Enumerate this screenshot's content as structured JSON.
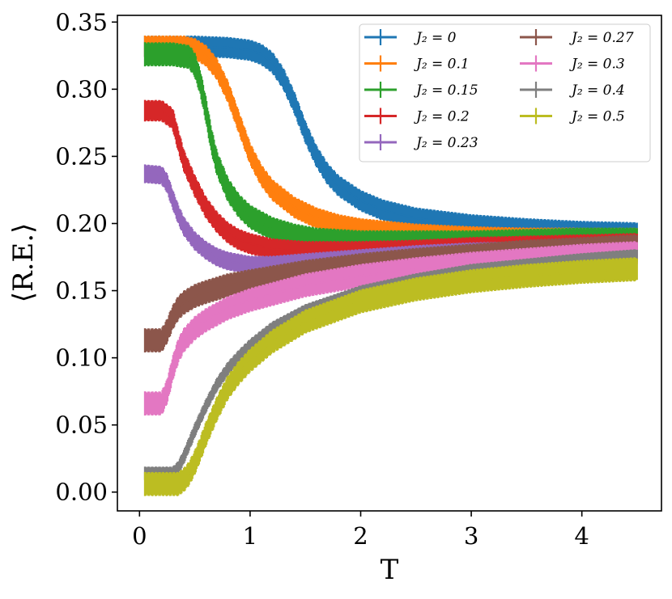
{
  "chart_data": {
    "type": "line",
    "title": "",
    "xlabel": "T",
    "ylabel": "⟨R.E.⟩",
    "xlim": [
      -0.2,
      4.72
    ],
    "ylim": [
      -0.014,
      0.355
    ],
    "xticks": [
      0,
      1,
      2,
      3,
      4
    ],
    "xtick_labels": [
      "0",
      "1",
      "2",
      "3",
      "4"
    ],
    "yticks": [
      0.0,
      0.05,
      0.1,
      0.15,
      0.2,
      0.25,
      0.3,
      0.35
    ],
    "ytick_labels": [
      "0.00",
      "0.05",
      "0.10",
      "0.15",
      "0.20",
      "0.25",
      "0.30",
      "0.35"
    ],
    "legend_position": "top-right",
    "legend_columns": 2,
    "grid": false,
    "series": [
      {
        "name": "J2 = 0",
        "label": "J₂ = 0",
        "color": "#1f77b4",
        "errorbar": 0.008,
        "x": [
          0.05,
          0.5,
          0.8,
          1.0,
          1.1,
          1.2,
          1.3,
          1.4,
          1.5,
          1.6,
          1.7,
          1.8,
          2.0,
          2.2,
          2.5,
          3.0,
          3.5,
          4.0,
          4.5
        ],
        "y": [
          0.332,
          0.332,
          0.331,
          0.329,
          0.326,
          0.32,
          0.308,
          0.29,
          0.268,
          0.25,
          0.237,
          0.228,
          0.217,
          0.21,
          0.204,
          0.199,
          0.196,
          0.194,
          0.193
        ]
      },
      {
        "name": "J2 = 0.1",
        "label": "J₂ = 0.1",
        "color": "#ff7f0e",
        "errorbar": 0.008,
        "x": [
          0.05,
          0.4,
          0.5,
          0.6,
          0.7,
          0.8,
          0.9,
          1.0,
          1.1,
          1.2,
          1.4,
          1.6,
          1.8,
          2.0,
          2.5,
          3.0,
          3.5,
          4.0,
          4.5
        ],
        "y": [
          0.332,
          0.332,
          0.33,
          0.325,
          0.315,
          0.298,
          0.275,
          0.252,
          0.236,
          0.225,
          0.212,
          0.204,
          0.199,
          0.196,
          0.192,
          0.19,
          0.189,
          0.189,
          0.189
        ]
      },
      {
        "name": "J2 = 0.15",
        "label": "J₂ = 0.15",
        "color": "#2ca02c",
        "errorbar": 0.009,
        "x": [
          0.05,
          0.3,
          0.45,
          0.5,
          0.55,
          0.6,
          0.65,
          0.7,
          0.8,
          0.9,
          1.0,
          1.2,
          1.4,
          1.6,
          2.0,
          2.5,
          3.0,
          3.5,
          4.0,
          4.5
        ],
        "y": [
          0.326,
          0.326,
          0.324,
          0.318,
          0.305,
          0.285,
          0.262,
          0.245,
          0.225,
          0.213,
          0.205,
          0.196,
          0.191,
          0.188,
          0.186,
          0.186,
          0.186,
          0.187,
          0.188,
          0.188
        ]
      },
      {
        "name": "J2 = 0.2",
        "label": "J₂ = 0.2",
        "color": "#d62728",
        "errorbar": 0.008,
        "x": [
          0.05,
          0.2,
          0.3,
          0.35,
          0.4,
          0.5,
          0.6,
          0.7,
          0.8,
          0.9,
          1.0,
          1.2,
          1.5,
          2.0,
          2.5,
          3.0,
          3.5,
          4.0,
          4.5
        ],
        "y": [
          0.284,
          0.284,
          0.278,
          0.262,
          0.247,
          0.228,
          0.212,
          0.201,
          0.193,
          0.188,
          0.185,
          0.181,
          0.179,
          0.179,
          0.18,
          0.182,
          0.183,
          0.184,
          0.185
        ]
      },
      {
        "name": "J2 = 0.23",
        "label": "J₂ = 0.23",
        "color": "#9467bd",
        "errorbar": 0.007,
        "x": [
          0.05,
          0.2,
          0.25,
          0.3,
          0.35,
          0.4,
          0.5,
          0.6,
          0.7,
          0.8,
          1.0,
          1.2,
          1.5,
          2.0,
          2.5,
          3.0,
          3.5,
          4.0,
          4.5
        ],
        "y": [
          0.237,
          0.236,
          0.23,
          0.218,
          0.207,
          0.198,
          0.187,
          0.18,
          0.175,
          0.172,
          0.169,
          0.169,
          0.171,
          0.174,
          0.177,
          0.179,
          0.18,
          0.181,
          0.182
        ]
      },
      {
        "name": "J2 = 0.27",
        "label": "J₂ = 0.27",
        "color": "#8c564b",
        "errorbar": 0.009,
        "x": [
          0.05,
          0.2,
          0.25,
          0.3,
          0.35,
          0.4,
          0.5,
          0.6,
          0.8,
          1.0,
          1.5,
          2.0,
          2.5,
          3.0,
          3.5,
          4.0,
          4.5
        ],
        "y": [
          0.113,
          0.113,
          0.12,
          0.13,
          0.137,
          0.141,
          0.146,
          0.149,
          0.154,
          0.157,
          0.164,
          0.169,
          0.173,
          0.176,
          0.179,
          0.181,
          0.183
        ]
      },
      {
        "name": "J2 = 0.3",
        "label": "J₂ = 0.3",
        "color": "#e377c2",
        "errorbar": 0.009,
        "x": [
          0.05,
          0.2,
          0.25,
          0.3,
          0.35,
          0.4,
          0.5,
          0.6,
          0.8,
          1.0,
          1.5,
          2.0,
          2.5,
          3.0,
          3.5,
          4.0,
          4.5
        ],
        "y": [
          0.066,
          0.066,
          0.075,
          0.092,
          0.105,
          0.113,
          0.122,
          0.128,
          0.137,
          0.143,
          0.154,
          0.161,
          0.166,
          0.17,
          0.173,
          0.176,
          0.178
        ]
      },
      {
        "name": "J2 = 0.4",
        "label": "J₂ = 0.4",
        "color": "#7f7f7f",
        "errorbar": 0.005,
        "x": [
          0.05,
          0.3,
          0.35,
          0.4,
          0.45,
          0.5,
          0.6,
          0.7,
          0.8,
          0.9,
          1.0,
          1.2,
          1.5,
          2.0,
          2.5,
          3.0,
          3.5,
          4.0,
          4.5
        ],
        "y": [
          0.014,
          0.014,
          0.018,
          0.026,
          0.036,
          0.046,
          0.064,
          0.08,
          0.092,
          0.101,
          0.109,
          0.122,
          0.135,
          0.149,
          0.158,
          0.165,
          0.169,
          0.173,
          0.176
        ]
      },
      {
        "name": "J2 = 0.5",
        "label": "J₂ = 0.5",
        "color": "#bcbd22",
        "errorbar": 0.009,
        "x": [
          0.05,
          0.35,
          0.4,
          0.45,
          0.5,
          0.55,
          0.6,
          0.7,
          0.8,
          0.9,
          1.0,
          1.2,
          1.5,
          2.0,
          2.5,
          3.0,
          3.5,
          4.0,
          4.5
        ],
        "y": [
          0.006,
          0.006,
          0.009,
          0.014,
          0.022,
          0.032,
          0.043,
          0.062,
          0.078,
          0.089,
          0.098,
          0.112,
          0.127,
          0.142,
          0.151,
          0.157,
          0.161,
          0.164,
          0.166
        ]
      }
    ]
  }
}
